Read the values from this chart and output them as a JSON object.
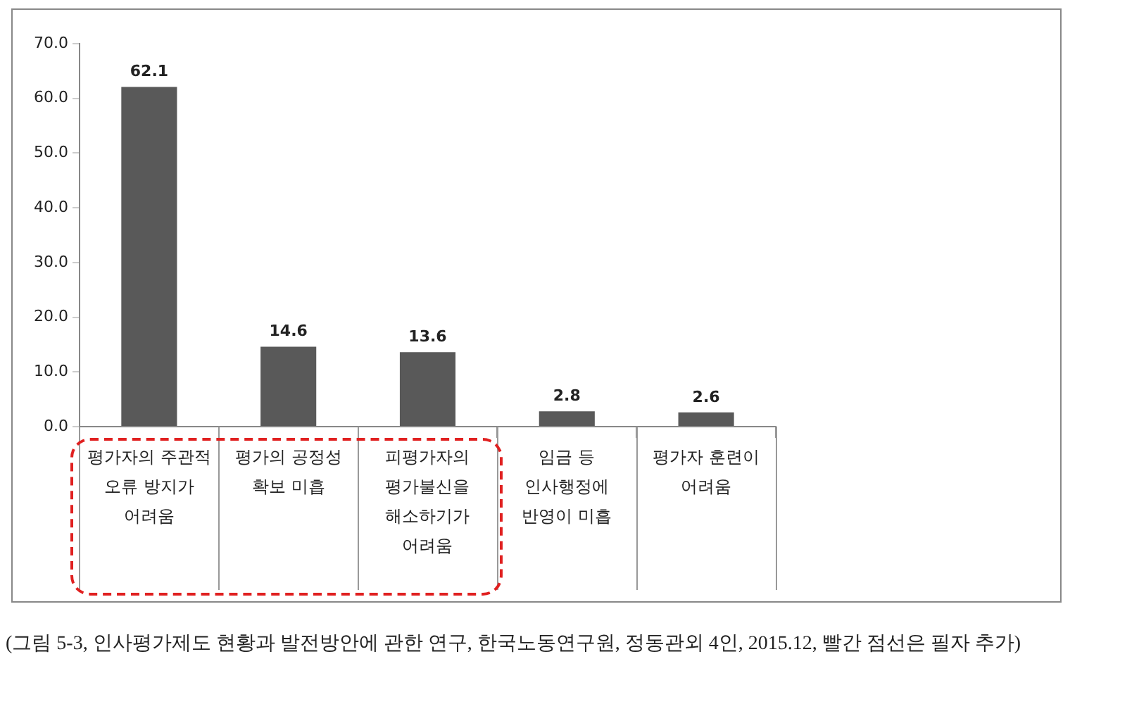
{
  "chart_data": {
    "type": "bar",
    "categories": [
      "평가자의 주관적 오류 방지가 어려움",
      "평가의 공정성 확보 미흡",
      "피평가자의 평가불신을 해소하기가 어려움",
      "임금 등 인사행정에 반영이 미흡",
      "평가자 훈련이 어려움"
    ],
    "values": [
      62.1,
      14.6,
      13.6,
      2.8,
      2.6
    ],
    "color": "#595959",
    "ylim": [
      0,
      70
    ],
    "yticks": [
      {
        "value": 0,
        "label": "0.0"
      },
      {
        "value": 10,
        "label": "10.0"
      },
      {
        "value": 20,
        "label": "20.0"
      },
      {
        "value": 30,
        "label": "30.0"
      },
      {
        "value": 40,
        "label": "40.0"
      },
      {
        "value": 50,
        "label": "50.0"
      },
      {
        "value": 60,
        "label": "60.0"
      },
      {
        "value": 70,
        "label": "70.0"
      }
    ],
    "grid": false,
    "legend": false,
    "data_labels": true,
    "annotations": [
      "(그림 5-3, 인사평가제도 현황과 발전방안에 관한 연구, 한국노동연구원, 정동관외 4인, 2015.12, 빨간 점선은 필자 추가)"
    ]
  }
}
